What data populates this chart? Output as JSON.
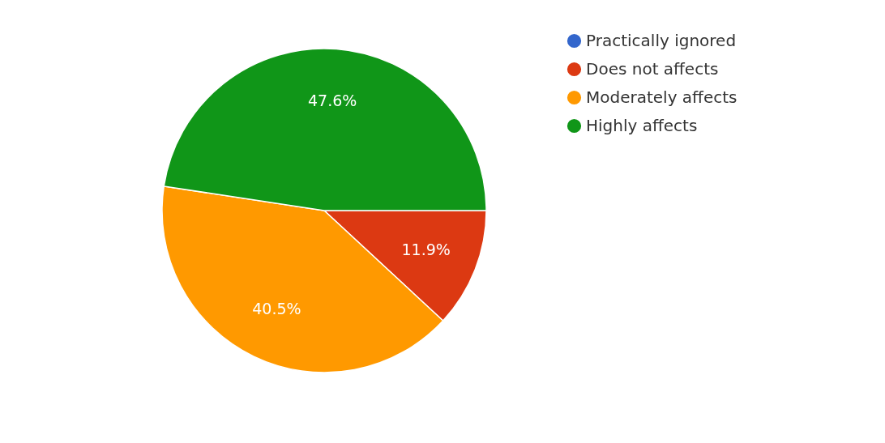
{
  "chart_data": {
    "type": "pie",
    "categories": [
      "Practically ignored",
      "Does not affects",
      "Moderately affects",
      "Highly affects"
    ],
    "values": [
      0,
      11.9,
      40.5,
      47.6
    ],
    "colors": [
      "#3366cc",
      "#dc3912",
      "#ff9900",
      "#109618"
    ],
    "value_labels": [
      null,
      "11.9%",
      "40.5%",
      "47.6%"
    ],
    "legend": "right"
  }
}
